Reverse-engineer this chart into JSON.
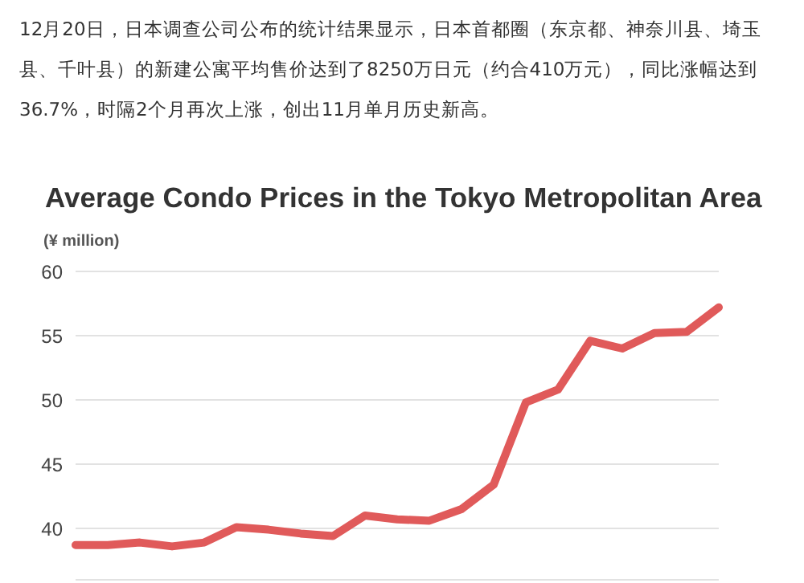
{
  "chart_data": {
    "type": "line",
    "title": "Average Condo Prices in the Tokyo Metropolitan Area",
    "ylabel": "(¥ million)",
    "annotations": [
      "12月20日，日本调查公司公布的统计结果显示，日本首都圈（东京都、神奈川县、埼玉县、千叶县）的新建公寓平均售价达到了8250万日元（约合410万元），同比涨幅达到36.7%，时隔2个月再次上涨，创出11月单月历史新高。"
    ],
    "categories": [
      null,
      null,
      null,
      null,
      null,
      null,
      null,
      null,
      null,
      null,
      null,
      null,
      null,
      null,
      null,
      null,
      null,
      null,
      null,
      null,
      null
    ],
    "series": [
      {
        "color": "#e05a5a",
        "values": [
          38.7,
          38.7,
          38.9,
          38.6,
          38.9,
          40.1,
          39.9,
          39.6,
          39.4,
          41.0,
          40.7,
          40.6,
          41.5,
          43.4,
          49.8,
          50.8,
          54.6,
          54.0,
          55.2,
          55.3,
          57.2
        ]
      }
    ],
    "ylim": [
      36,
      60
    ],
    "yticks": [
      40,
      45,
      50,
      55,
      60
    ],
    "grid": "y",
    "marker": "none",
    "line_style": "solid",
    "legend": false
  }
}
